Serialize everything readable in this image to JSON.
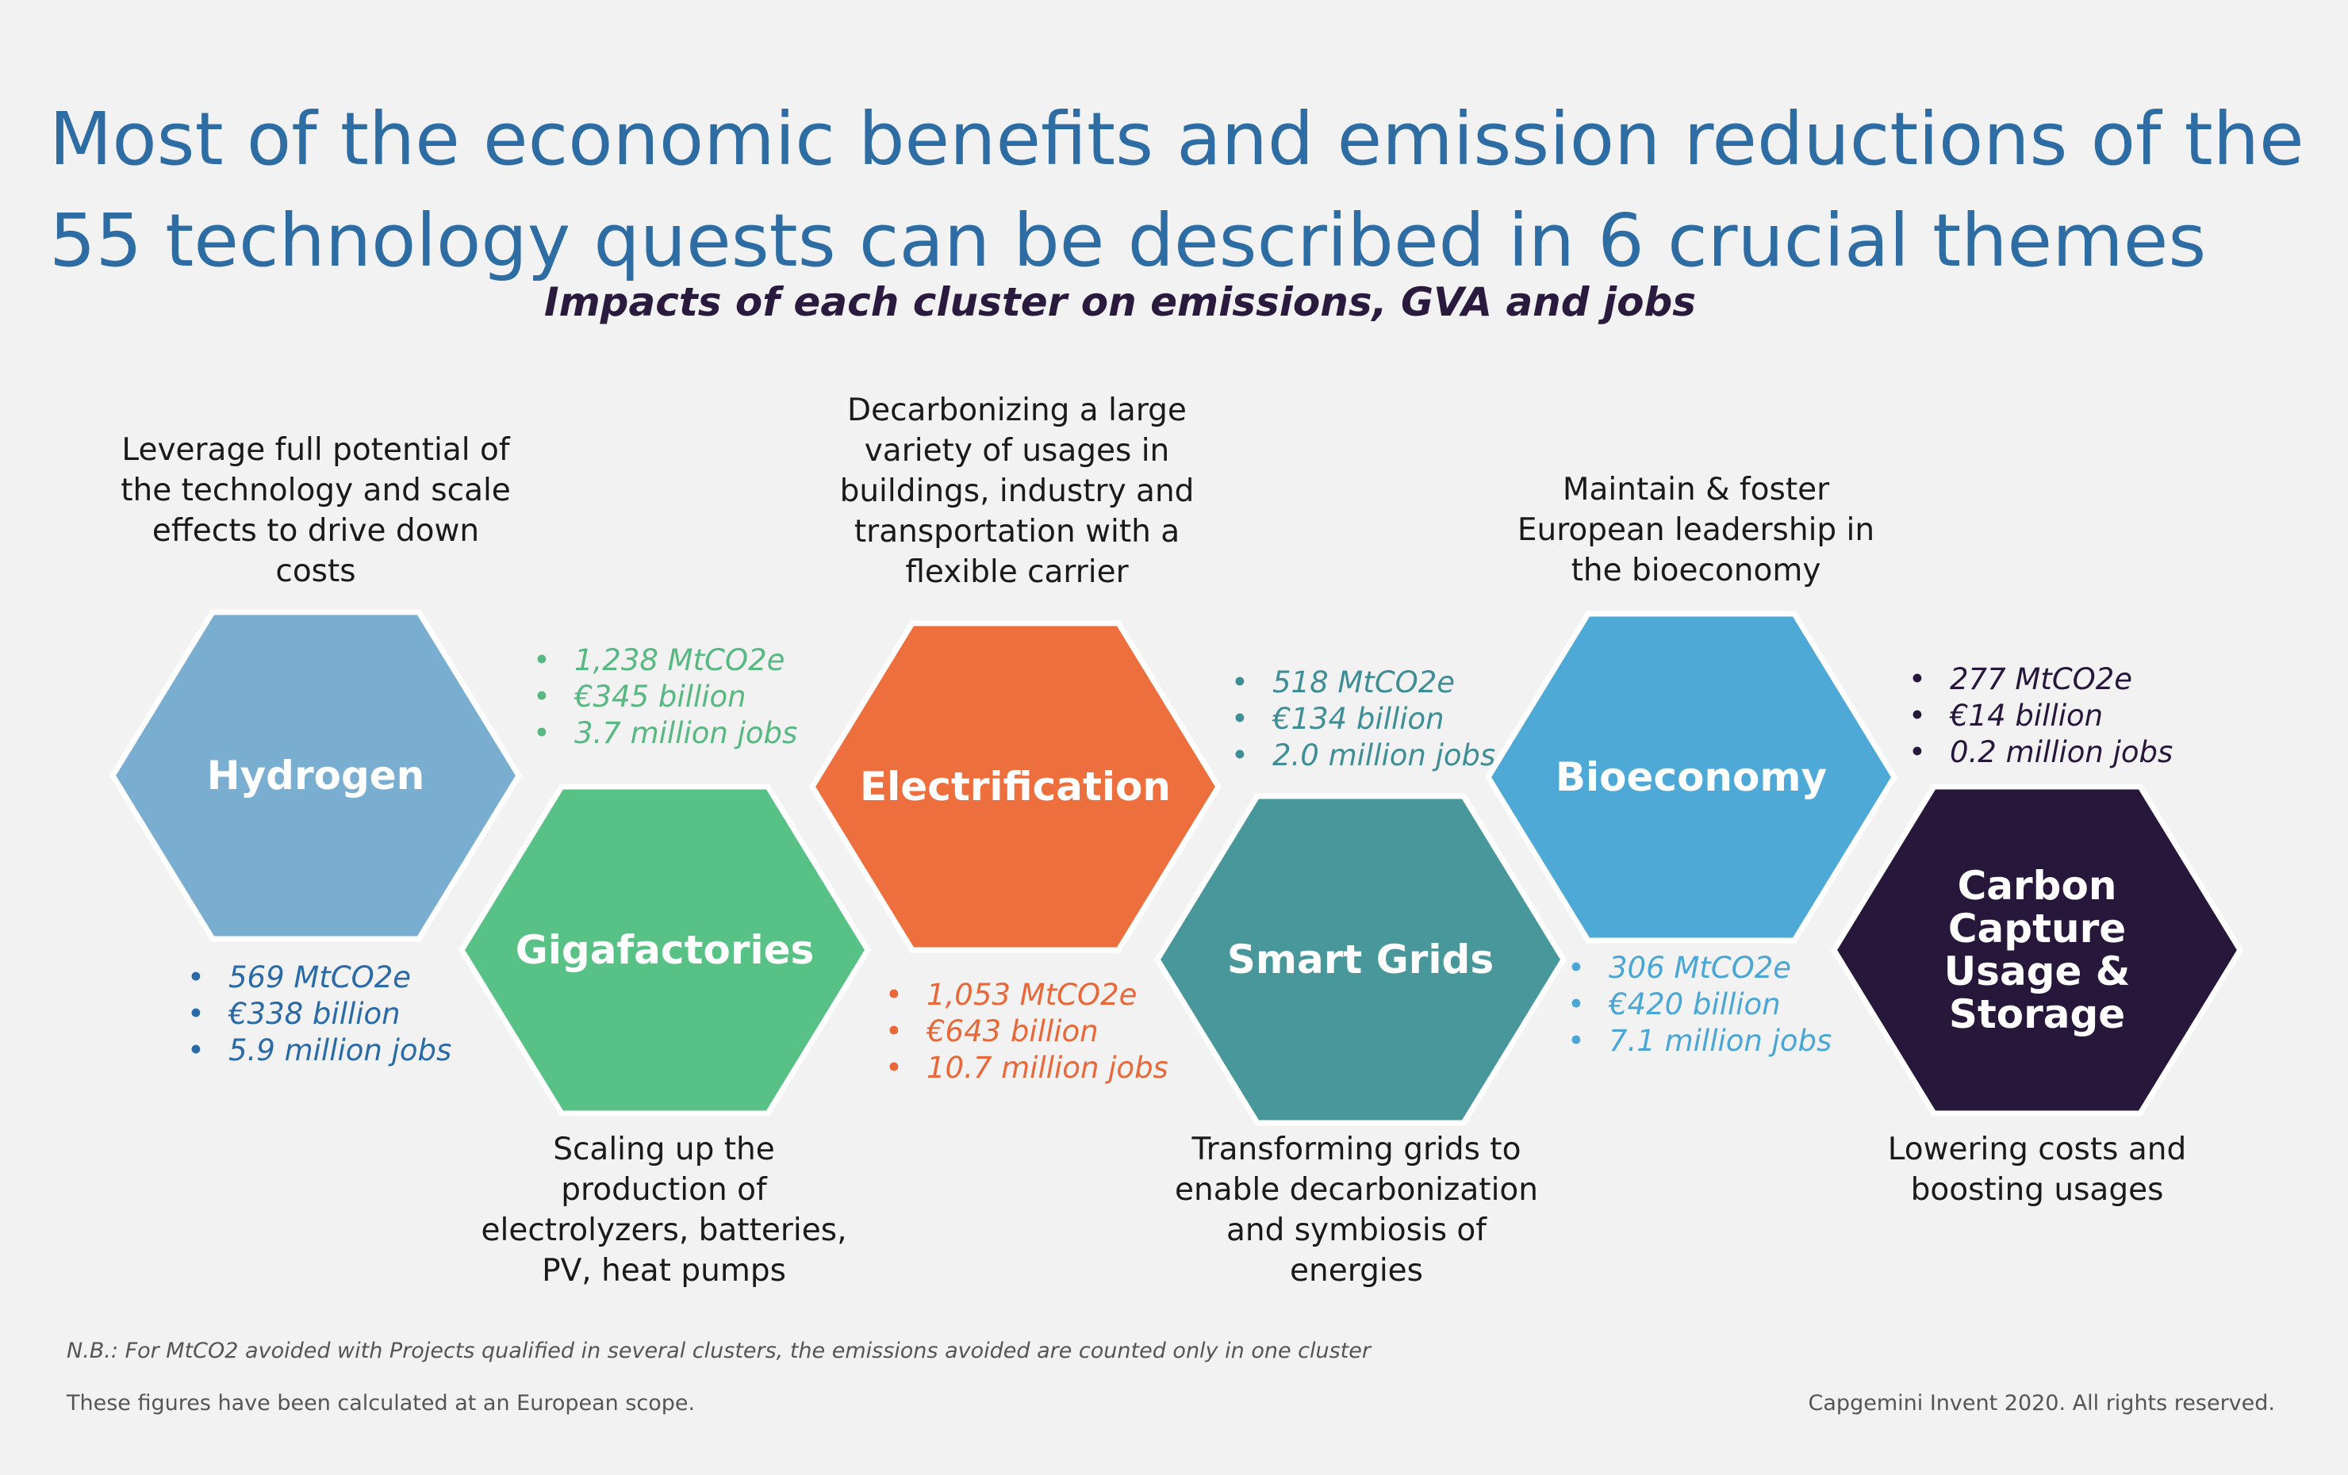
{
  "title": {
    "line1": "Most of the economic benefits and emission reductions of the",
    "line2": "55 technology quests can be described in 6 crucial themes"
  },
  "subtitle": "Impacts of each cluster on emissions, GVA and jobs",
  "clusters": [
    {
      "name": "Hydrogen",
      "color": "#7aaed1",
      "description": "Leverage full potential of the technology and scale effects to drive down costs",
      "stats_color": "#2a6aa6",
      "stats": [
        "569 MtCO2e",
        "€338 billion",
        "5.9 million jobs"
      ]
    },
    {
      "name": "Gigafactories",
      "color": "#58c185",
      "description": "Scaling up the production of electrolyzers, batteries, PV, heat pumps",
      "stats_color": "#58b882",
      "stats": [
        "1,238 MtCO2e",
        "€345 billion",
        "3.7 million jobs"
      ]
    },
    {
      "name": "Electrification",
      "color": "#ec6f3d",
      "description": "Decarbonizing a large variety of usages in buildings, industry and transportation with a flexible carrier",
      "stats_color": "#e8683a",
      "stats": [
        "1,053 MtCO2e",
        "€643 billion",
        "10.7 million jobs"
      ]
    },
    {
      "name": "Smart Grids",
      "color": "#48979b",
      "description": "Transforming grids to enable decarbonization and symbiosis of energies",
      "stats_color": "#3f8e96",
      "stats": [
        "518 MtCO2e",
        "€134 billion",
        "2.0 million jobs"
      ]
    },
    {
      "name": "Bioeconomy",
      "color": "#4ea9d6",
      "description": "Maintain & foster European leadership in the bioeconomy",
      "stats_color": "#4aa6d4",
      "stats": [
        "306 MtCO2e",
        "€420 billion",
        "7.1 million jobs"
      ]
    },
    {
      "name": "Carbon Capture Usage & Storage",
      "color": "#27173b",
      "description": "Lowering costs and boosting usages",
      "stats_color": "#27173b",
      "stats": [
        "277 MtCO2e",
        "€14 billion",
        "0.2 million jobs"
      ]
    }
  ],
  "footer": {
    "note": "N.B.: For MtCO2 avoided with Projects qualified in several clusters, the emissions avoided are counted only in one cluster",
    "scope": "These figures have been calculated at an European scope.",
    "copyright": "Capgemini Invent 2020. All rights reserved."
  }
}
